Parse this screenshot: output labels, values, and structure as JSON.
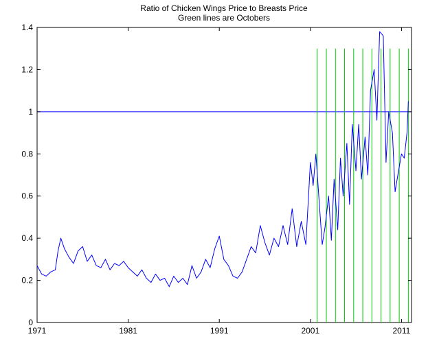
{
  "chart_data": {
    "type": "line",
    "title": "Ratio of Chicken Wings Price to Breasts Price",
    "subtitle": "Green lines are Octobers",
    "xlabel": "",
    "ylabel": "",
    "xlim": [
      1971,
      2012.1
    ],
    "ylim": [
      0,
      1.4
    ],
    "xticks": [
      1971,
      1981,
      1991,
      2001,
      2011
    ],
    "xtick_labels": [
      "1971",
      "1981",
      "1991",
      "2001",
      "2011"
    ],
    "yticks": [
      0,
      0.2,
      0.4,
      0.6,
      0.8,
      1,
      1.2,
      1.4
    ],
    "ytick_labels": [
      "0",
      "0.2",
      "0.4",
      "0.6",
      "0.8",
      "1",
      "1.2",
      "1.4"
    ],
    "grid": false,
    "legend": "none",
    "colors": {
      "series": "#0000ff",
      "reference": "#0000ff",
      "october": "#00cc00",
      "axes": "#000000",
      "background": "#ffffff"
    },
    "reference_line": {
      "y": 1.0
    },
    "october_lines": {
      "x": [
        2001.75,
        2002.75,
        2003.75,
        2004.75,
        2005.75,
        2006.75,
        2007.75,
        2008.75,
        2009.75,
        2010.75,
        2011.75
      ],
      "y_top": 1.3
    },
    "series": [
      {
        "x": [
          1971.0,
          1971.5,
          1972.0,
          1972.5,
          1973.0,
          1973.3,
          1973.6,
          1974.0,
          1974.5,
          1975.0,
          1975.5,
          1976.0,
          1976.5,
          1977.0,
          1977.5,
          1978.0,
          1978.5,
          1979.0,
          1979.5,
          1980.0,
          1980.5,
          1981.0,
          1981.5,
          1982.0,
          1982.5,
          1983.0,
          1983.5,
          1984.0,
          1984.5,
          1985.0,
          1985.5,
          1986.0,
          1986.5,
          1987.0,
          1987.5,
          1988.0,
          1988.5,
          1989.0,
          1989.5,
          1990.0,
          1990.5,
          1991.0,
          1991.5,
          1992.0,
          1992.5,
          1993.0,
          1993.5,
          1994.0,
          1994.5,
          1995.0,
          1995.5,
          1996.0,
          1996.5,
          1997.0,
          1997.5,
          1998.0,
          1998.5,
          1999.0,
          1999.5,
          2000.0,
          2000.5,
          2001.0,
          2001.3,
          2001.6,
          2002.0,
          2002.3,
          2002.6,
          2003.0,
          2003.3,
          2003.6,
          2004.0,
          2004.3,
          2004.6,
          2005.0,
          2005.3,
          2005.6,
          2006.0,
          2006.3,
          2006.6,
          2007.0,
          2007.3,
          2007.6,
          2008.0,
          2008.3,
          2008.6,
          2009.0,
          2009.3,
          2009.6,
          2010.0,
          2010.3,
          2010.6,
          2011.0,
          2011.3,
          2011.6,
          2011.75
        ],
        "y": [
          0.27,
          0.23,
          0.22,
          0.24,
          0.25,
          0.34,
          0.4,
          0.35,
          0.31,
          0.28,
          0.34,
          0.36,
          0.29,
          0.32,
          0.27,
          0.26,
          0.3,
          0.25,
          0.28,
          0.27,
          0.29,
          0.26,
          0.24,
          0.22,
          0.25,
          0.21,
          0.19,
          0.23,
          0.2,
          0.21,
          0.17,
          0.22,
          0.19,
          0.21,
          0.18,
          0.27,
          0.21,
          0.24,
          0.3,
          0.26,
          0.35,
          0.41,
          0.3,
          0.27,
          0.22,
          0.21,
          0.24,
          0.3,
          0.36,
          0.33,
          0.46,
          0.38,
          0.32,
          0.4,
          0.36,
          0.46,
          0.37,
          0.54,
          0.36,
          0.48,
          0.37,
          0.76,
          0.65,
          0.8,
          0.55,
          0.37,
          0.45,
          0.6,
          0.39,
          0.68,
          0.44,
          0.78,
          0.6,
          0.85,
          0.56,
          0.94,
          0.72,
          0.94,
          0.68,
          0.88,
          0.7,
          1.1,
          1.2,
          0.96,
          1.38,
          1.36,
          0.76,
          1.0,
          0.9,
          0.62,
          0.7,
          0.8,
          0.78,
          0.9,
          1.05
        ]
      }
    ]
  }
}
